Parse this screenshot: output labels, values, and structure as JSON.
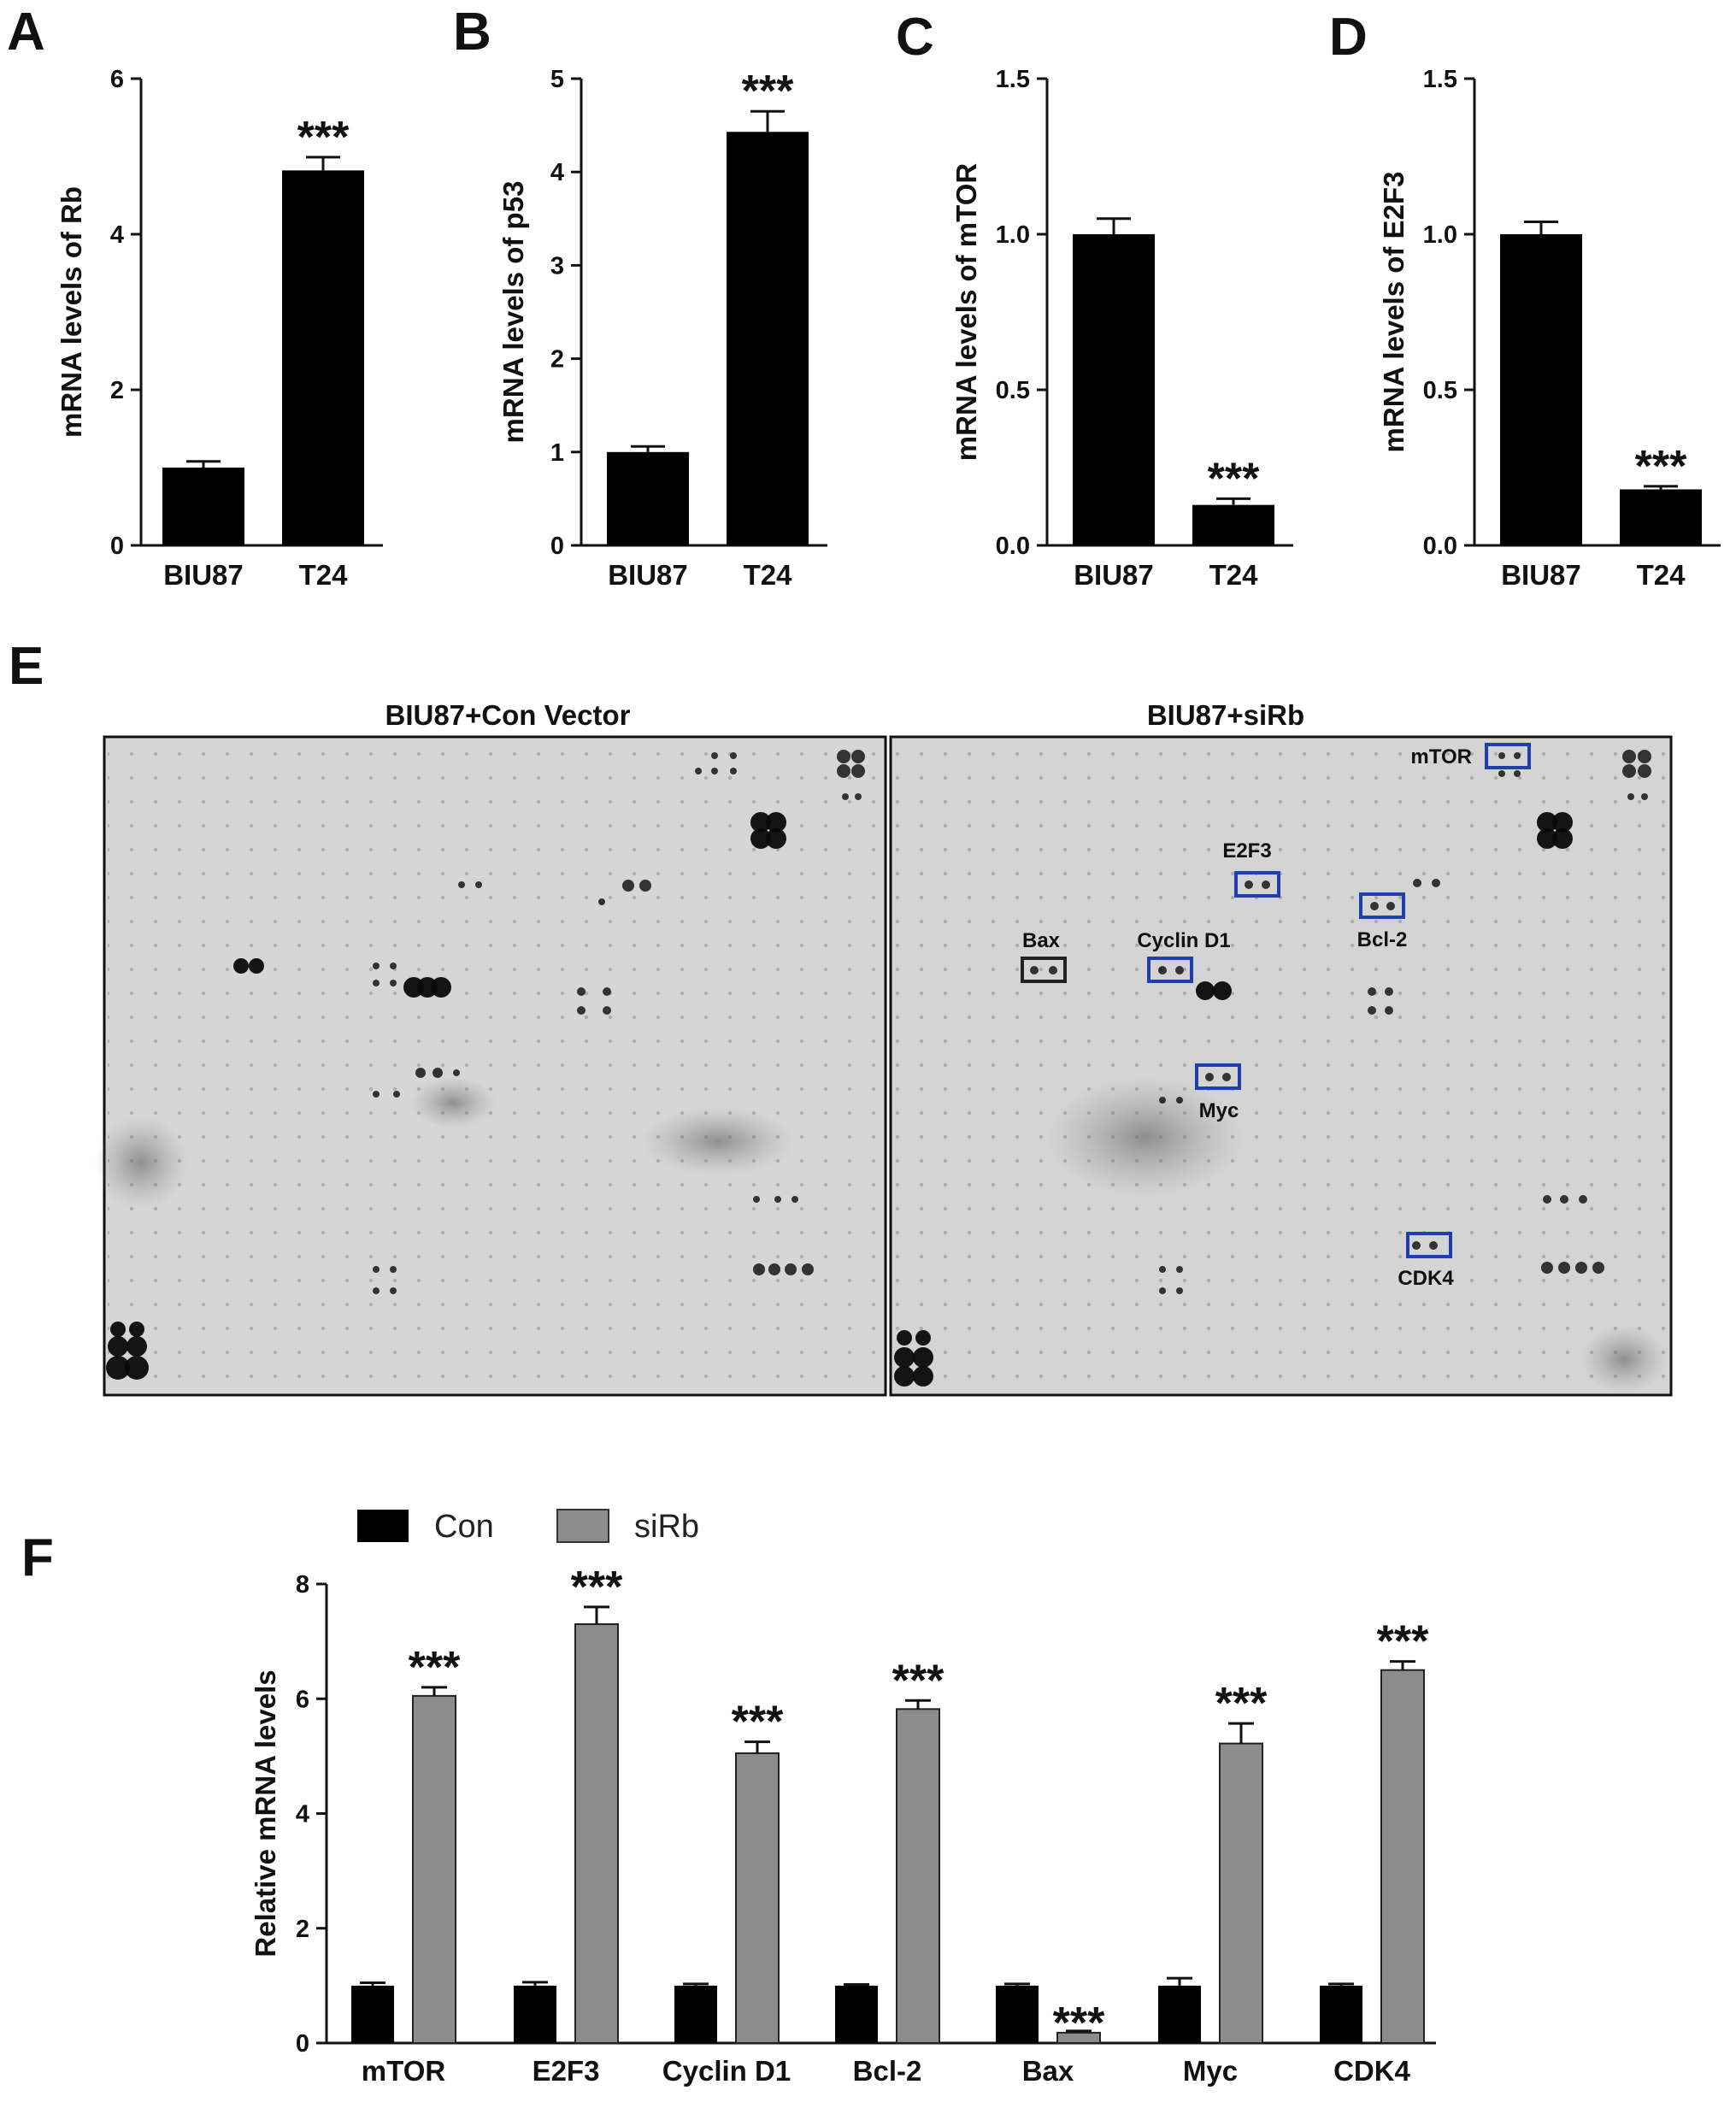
{
  "panels": {
    "a": "A",
    "b": "B",
    "c": "C",
    "d": "D",
    "e": "E",
    "f": "F"
  },
  "chart_data": [
    {
      "panel": "A",
      "type": "bar",
      "ylabel": "mRNA  levels of Rb",
      "categories": [
        "BIU87",
        "T24"
      ],
      "values": [
        1.0,
        4.82
      ],
      "errors": [
        0.08,
        0.17
      ],
      "significance": [
        "",
        "***"
      ],
      "ylim": [
        0,
        6
      ],
      "yticks": [
        "0",
        "2",
        "4",
        "6"
      ],
      "ytick_values": [
        0,
        2,
        4,
        6
      ]
    },
    {
      "panel": "B",
      "type": "bar",
      "ylabel": "mRNA  levels of p53",
      "categories": [
        "BIU87",
        "T24"
      ],
      "values": [
        1.0,
        4.43
      ],
      "errors": [
        0.06,
        0.22
      ],
      "significance": [
        "",
        "***"
      ],
      "ylim": [
        0,
        5
      ],
      "yticks": [
        "0",
        "1",
        "2",
        "3",
        "4",
        "5"
      ],
      "ytick_values": [
        0,
        1,
        2,
        3,
        4,
        5
      ]
    },
    {
      "panel": "C",
      "type": "bar",
      "ylabel": "mRNA  levels of mTOR",
      "categories": [
        "BIU87",
        "T24"
      ],
      "values": [
        1.0,
        0.13
      ],
      "errors": [
        0.05,
        0.02
      ],
      "significance": [
        "",
        "***"
      ],
      "ylim": [
        0,
        1.5
      ],
      "yticks": [
        "0.0",
        "0.5",
        "1.0",
        "1.5"
      ],
      "ytick_values": [
        0,
        0.5,
        1.0,
        1.5
      ]
    },
    {
      "panel": "D",
      "type": "bar",
      "ylabel": "mRNA  levels of  E2F3",
      "categories": [
        "BIU87",
        "T24"
      ],
      "values": [
        1.0,
        0.18
      ],
      "errors": [
        0.04,
        0.01
      ],
      "significance": [
        "",
        "***"
      ],
      "ylim": [
        0,
        1.5
      ],
      "yticks": [
        "0.0",
        "0.5",
        "1.0",
        "1.5"
      ],
      "ytick_values": [
        0,
        0.5,
        1.0,
        1.5
      ]
    },
    {
      "panel": "F",
      "type": "bar",
      "ylabel": "Relative  mRNA  levels",
      "categories": [
        "mTOR",
        "E2F3",
        "Cyclin D1",
        "Bcl-2",
        "Bax",
        "Myc",
        "CDK4"
      ],
      "legend_position": "top",
      "series": [
        {
          "name": "Con",
          "color": "#000000",
          "values": [
            1.0,
            1.0,
            1.0,
            1.0,
            1.0,
            1.0,
            1.0
          ],
          "errors": [
            0.05,
            0.06,
            0.03,
            0.02,
            0.03,
            0.13,
            0.03
          ]
        },
        {
          "name": "siRb",
          "color": "#8c8c8c",
          "values": [
            6.05,
            7.3,
            5.05,
            5.82,
            0.18,
            5.22,
            6.5
          ],
          "errors": [
            0.15,
            0.3,
            0.2,
            0.15,
            0.03,
            0.35,
            0.15
          ],
          "significance": [
            "***",
            "***",
            "***",
            "***",
            "***",
            "***",
            "***"
          ]
        }
      ],
      "ylim": [
        0,
        8
      ],
      "yticks": [
        "0",
        "2",
        "4",
        "6",
        "8"
      ],
      "ytick_values": [
        0,
        2,
        4,
        6,
        8
      ]
    }
  ],
  "blot": {
    "left_title": "BIU87+Con Vector",
    "right_title": "BIU87+siRb",
    "labels": {
      "mtor": "mTOR",
      "e2f3": "E2F3",
      "bcl2": "Bcl-2",
      "bax": "Bax",
      "cyclin": "Cyclin D1",
      "myc": "Myc",
      "cdk4": "CDK4"
    },
    "box_colors": {
      "highlight": "#1f3fb0",
      "reference": "#222222"
    }
  }
}
